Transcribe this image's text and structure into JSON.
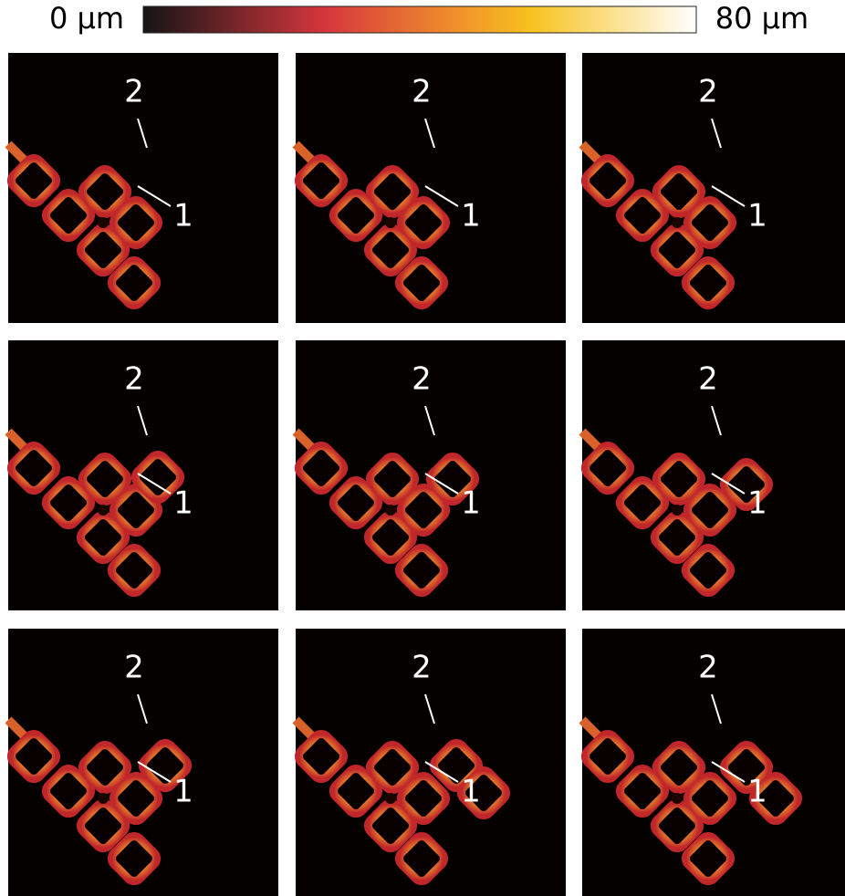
{
  "colorbar": {
    "min_label": "0 µm",
    "max_label": "80 µm"
  },
  "panels": [
    {
      "labels": [
        "2",
        "1"
      ]
    },
    {
      "labels": [
        "2",
        "1"
      ]
    },
    {
      "labels": [
        "2",
        "1"
      ]
    },
    {
      "labels": [
        "2",
        "1"
      ]
    },
    {
      "labels": [
        "2",
        "1"
      ]
    },
    {
      "labels": [
        "2",
        "1"
      ]
    },
    {
      "labels": [
        "2",
        "1"
      ]
    },
    {
      "labels": [
        "2",
        "1"
      ]
    },
    {
      "labels": [
        "2",
        "1"
      ]
    }
  ]
}
